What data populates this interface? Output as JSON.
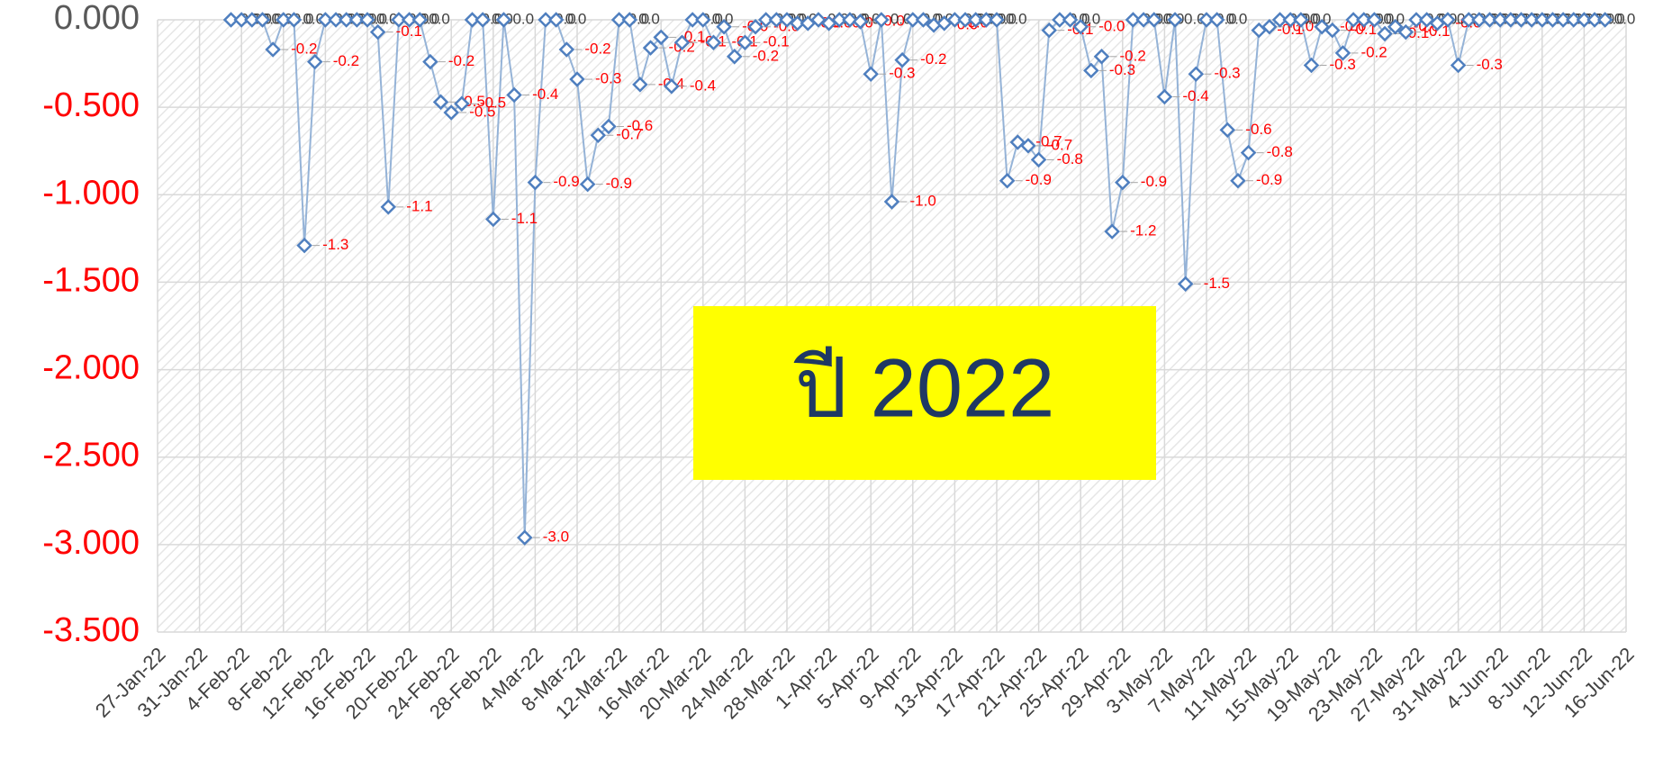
{
  "chart_data": {
    "type": "line",
    "x": [
      "2022-02-03",
      "2022-02-04",
      "2022-02-05",
      "2022-02-06",
      "2022-02-07",
      "2022-02-08",
      "2022-02-09",
      "2022-02-10",
      "2022-02-11",
      "2022-02-12",
      "2022-02-13",
      "2022-02-14",
      "2022-02-15",
      "2022-02-16",
      "2022-02-17",
      "2022-02-18",
      "2022-02-19",
      "2022-02-20",
      "2022-02-21",
      "2022-02-22",
      "2022-02-23",
      "2022-02-24",
      "2022-02-25",
      "2022-02-26",
      "2022-02-27",
      "2022-02-28",
      "2022-03-01",
      "2022-03-02",
      "2022-03-03",
      "2022-03-04",
      "2022-03-05",
      "2022-03-06",
      "2022-03-07",
      "2022-03-08",
      "2022-03-09",
      "2022-03-10",
      "2022-03-11",
      "2022-03-12",
      "2022-03-13",
      "2022-03-14",
      "2022-03-15",
      "2022-03-16",
      "2022-03-17",
      "2022-03-18",
      "2022-03-19",
      "2022-03-20",
      "2022-03-21",
      "2022-03-22",
      "2022-03-23",
      "2022-03-24",
      "2022-03-25",
      "2022-03-26",
      "2022-03-27",
      "2022-03-28",
      "2022-03-29",
      "2022-03-30",
      "2022-03-31",
      "2022-04-01",
      "2022-04-02",
      "2022-04-03",
      "2022-04-04",
      "2022-04-05",
      "2022-04-06",
      "2022-04-07",
      "2022-04-08",
      "2022-04-09",
      "2022-04-10",
      "2022-04-11",
      "2022-04-12",
      "2022-04-13",
      "2022-04-14",
      "2022-04-15",
      "2022-04-16",
      "2022-04-17",
      "2022-04-18",
      "2022-04-19",
      "2022-04-20",
      "2022-04-21",
      "2022-04-22",
      "2022-04-23",
      "2022-04-24",
      "2022-04-25",
      "2022-04-26",
      "2022-04-27",
      "2022-04-28",
      "2022-04-29",
      "2022-04-30",
      "2022-05-01",
      "2022-05-02",
      "2022-05-03",
      "2022-05-04",
      "2022-05-05",
      "2022-05-06",
      "2022-05-07",
      "2022-05-08",
      "2022-05-09",
      "2022-05-10",
      "2022-05-11",
      "2022-05-12",
      "2022-05-13",
      "2022-05-14",
      "2022-05-15",
      "2022-05-16",
      "2022-05-17",
      "2022-05-18",
      "2022-05-19",
      "2022-05-20",
      "2022-05-21",
      "2022-05-22",
      "2022-05-23",
      "2022-05-24",
      "2022-05-25",
      "2022-05-26",
      "2022-05-27",
      "2022-05-28",
      "2022-05-29",
      "2022-05-30",
      "2022-05-31",
      "2022-06-01",
      "2022-06-02",
      "2022-06-03",
      "2022-06-04",
      "2022-06-05",
      "2022-06-06",
      "2022-06-07",
      "2022-06-08",
      "2022-06-09",
      "2022-06-10",
      "2022-06-11",
      "2022-06-12",
      "2022-06-13",
      "2022-06-14"
    ],
    "series": [
      {
        "color": "#4f7fbf",
        "values": [
          0,
          0,
          0,
          0,
          -0.17,
          0,
          0,
          -1.29,
          -0.24,
          0,
          0,
          0,
          0,
          0,
          -0.07,
          -1.07,
          0,
          0,
          0,
          -0.24,
          -0.47,
          -0.53,
          -0.48,
          0,
          0,
          -1.14,
          0,
          -0.43,
          -2.96,
          -0.93,
          0,
          0,
          -0.17,
          -0.34,
          -0.94,
          -0.66,
          -0.61,
          0,
          0,
          -0.37,
          -0.16,
          -0.1,
          -0.38,
          -0.13,
          0,
          0,
          -0.13,
          -0.04,
          -0.21,
          -0.13,
          -0.04,
          0,
          0,
          0,
          -0.02,
          -0.02,
          0,
          -0.02,
          0,
          0,
          -0.01,
          -0.31,
          0,
          -1.04,
          -0.23,
          0,
          0,
          -0.03,
          -0.02,
          0,
          0,
          0,
          0,
          0,
          -0.92,
          -0.7,
          -0.72,
          -0.8,
          -0.06,
          0,
          0,
          -0.04,
          -0.29,
          -0.21,
          -1.21,
          -0.93,
          0,
          0,
          0,
          -0.44,
          0,
          -1.51,
          -0.31,
          0,
          0,
          -0.63,
          -0.92,
          -0.76,
          -0.06,
          -0.04,
          0,
          0,
          0,
          -0.26,
          -0.04,
          -0.06,
          -0.19,
          0,
          0,
          0,
          -0.08,
          -0.04,
          -0.07,
          0,
          0,
          -0.02,
          0,
          -0.26,
          0,
          0,
          0,
          0,
          0,
          0,
          0,
          0,
          0,
          0,
          0,
          0,
          0,
          0
        ],
        "value_labels": [
          "0.0",
          "0.0",
          "0.0",
          "0.0",
          "-0.2",
          "0.0",
          "0.0",
          "-1.3",
          "-0.2",
          "0.0",
          "0.0",
          "0.0",
          "0.0",
          "0.0",
          "-0.1",
          "-1.1",
          "0.0",
          "0.0",
          "0.0",
          "-0.2",
          "-0.5",
          "-0.5",
          "-0.5",
          "0.0",
          "0.0",
          "-1.1",
          "0.0",
          "-0.4",
          "-3.0",
          "-0.9",
          "0.0",
          "0.0",
          "-0.2",
          "-0.3",
          "-0.9",
          "-0.7",
          "-0.6",
          "0.0",
          "0.0",
          "-0.4",
          "-0.2",
          "-0.1",
          "-0.4",
          "-0.1",
          "0.0",
          "0.0",
          "-0.1",
          "-0.0",
          "-0.2",
          "-0.1",
          "-0.0",
          "0.0",
          "0.0",
          "0.0",
          "-0.0",
          "-0.0",
          "0.0",
          "-0.0",
          "0.0",
          "0.0",
          "-0.0",
          "-0.3",
          "0.0",
          "-1.0",
          "-0.2",
          "0.0",
          "0.0",
          "-0.0",
          "-0.0",
          "0.0",
          "0.0",
          "0.0",
          "0.0",
          "0.0",
          "-0.9",
          "-0.7",
          "-0.7",
          "-0.8",
          "-0.1",
          "0.0",
          "0.0",
          "-0.0",
          "-0.3",
          "-0.2",
          "-1.2",
          "-0.9",
          "0.0",
          "0.0",
          "0.0",
          "-0.4",
          "0.0",
          "-1.5",
          "-0.3",
          "0.0",
          "0.0",
          "-0.6",
          "-0.9",
          "-0.8",
          "-0.1",
          "-0.0",
          "0.0",
          "0.0",
          "0.0",
          "-0.3",
          "-0.0",
          "-0.1",
          "-0.2",
          "0.0",
          "0.0",
          "0.0",
          "-0.1",
          "-0.0",
          "-0.1",
          "0.0",
          "0.0",
          "-0.0",
          "0.0",
          "-0.3",
          "0.0",
          "0.0",
          "0.0",
          "0.0",
          "0.0",
          "0.0",
          "0.0",
          "0.0",
          "0.0",
          "0.0",
          "0.0",
          "0.0",
          "0.0",
          "0.0"
        ]
      }
    ],
    "xlim": [
      "2022-01-27",
      "2022-06-16"
    ],
    "xticks": [
      {
        "value": "2022-01-27",
        "label": "27-Jan-22"
      },
      {
        "value": "2022-01-31",
        "label": "31-Jan-22"
      },
      {
        "value": "2022-02-04",
        "label": "4-Feb-22"
      },
      {
        "value": "2022-02-08",
        "label": "8-Feb-22"
      },
      {
        "value": "2022-02-12",
        "label": "12-Feb-22"
      },
      {
        "value": "2022-02-16",
        "label": "16-Feb-22"
      },
      {
        "value": "2022-02-20",
        "label": "20-Feb-22"
      },
      {
        "value": "2022-02-24",
        "label": "24-Feb-22"
      },
      {
        "value": "2022-02-28",
        "label": "28-Feb-22"
      },
      {
        "value": "2022-03-04",
        "label": "4-Mar-22"
      },
      {
        "value": "2022-03-08",
        "label": "8-Mar-22"
      },
      {
        "value": "2022-03-12",
        "label": "12-Mar-22"
      },
      {
        "value": "2022-03-16",
        "label": "16-Mar-22"
      },
      {
        "value": "2022-03-20",
        "label": "20-Mar-22"
      },
      {
        "value": "2022-03-24",
        "label": "24-Mar-22"
      },
      {
        "value": "2022-03-28",
        "label": "28-Mar-22"
      },
      {
        "value": "2022-04-01",
        "label": "1-Apr-22"
      },
      {
        "value": "2022-04-05",
        "label": "5-Apr-22"
      },
      {
        "value": "2022-04-09",
        "label": "9-Apr-22"
      },
      {
        "value": "2022-04-13",
        "label": "13-Apr-22"
      },
      {
        "value": "2022-04-17",
        "label": "17-Apr-22"
      },
      {
        "value": "2022-04-21",
        "label": "21-Apr-22"
      },
      {
        "value": "2022-04-25",
        "label": "25-Apr-22"
      },
      {
        "value": "2022-04-29",
        "label": "29-Apr-22"
      },
      {
        "value": "2022-05-03",
        "label": "3-May-22"
      },
      {
        "value": "2022-05-07",
        "label": "7-May-22"
      },
      {
        "value": "2022-05-11",
        "label": "11-May-22"
      },
      {
        "value": "2022-05-15",
        "label": "15-May-22"
      },
      {
        "value": "2022-05-19",
        "label": "19-May-22"
      },
      {
        "value": "2022-05-23",
        "label": "23-May-22"
      },
      {
        "value": "2022-05-27",
        "label": "27-May-22"
      },
      {
        "value": "2022-05-31",
        "label": "31-May-22"
      },
      {
        "value": "2022-06-04",
        "label": "4-Jun-22"
      },
      {
        "value": "2022-06-08",
        "label": "8-Jun-22"
      },
      {
        "value": "2022-06-12",
        "label": "12-Jun-22"
      },
      {
        "value": "2022-06-16",
        "label": "16-Jun-22"
      }
    ],
    "ylim": [
      -3.5,
      0
    ],
    "yticks": [
      {
        "value": 0,
        "label": "0.000"
      },
      {
        "value": -0.5,
        "label": "-0.500"
      },
      {
        "value": -1,
        "label": "-1.000"
      },
      {
        "value": -1.5,
        "label": "-1.500"
      },
      {
        "value": -2,
        "label": "-2.000"
      },
      {
        "value": -2.5,
        "label": "-2.500"
      },
      {
        "value": -3,
        "label": "-3.000"
      },
      {
        "value": -3.5,
        "label": "-3.500"
      }
    ],
    "grid": true,
    "annotation": "ปี 2022"
  }
}
